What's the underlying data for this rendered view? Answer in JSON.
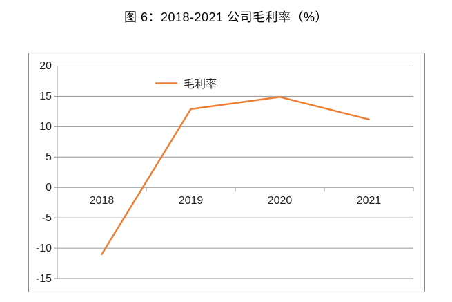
{
  "title": "图 6：2018-2021 公司毛利率（%）",
  "legend": {
    "label": "毛利率"
  },
  "chart_data": {
    "type": "line",
    "title": "图 6：2018-2021 公司毛利率（%）",
    "categories": [
      "2018",
      "2019",
      "2020",
      "2021"
    ],
    "series": [
      {
        "name": "毛利率",
        "values": [
          -11.0,
          12.9,
          14.9,
          11.2
        ]
      }
    ],
    "xlabel": "",
    "ylabel": "",
    "ylim": [
      -15,
      20
    ],
    "yticks": [
      20,
      15,
      10,
      5,
      0,
      -5,
      -10,
      -15
    ],
    "grid": true,
    "legend_position": "top-center-inside"
  },
  "colors": {
    "line": "#ED7D31",
    "grid": "#969696",
    "axis": "#969696",
    "frame": "#8C8C8C",
    "text": "#1F1F1F"
  }
}
